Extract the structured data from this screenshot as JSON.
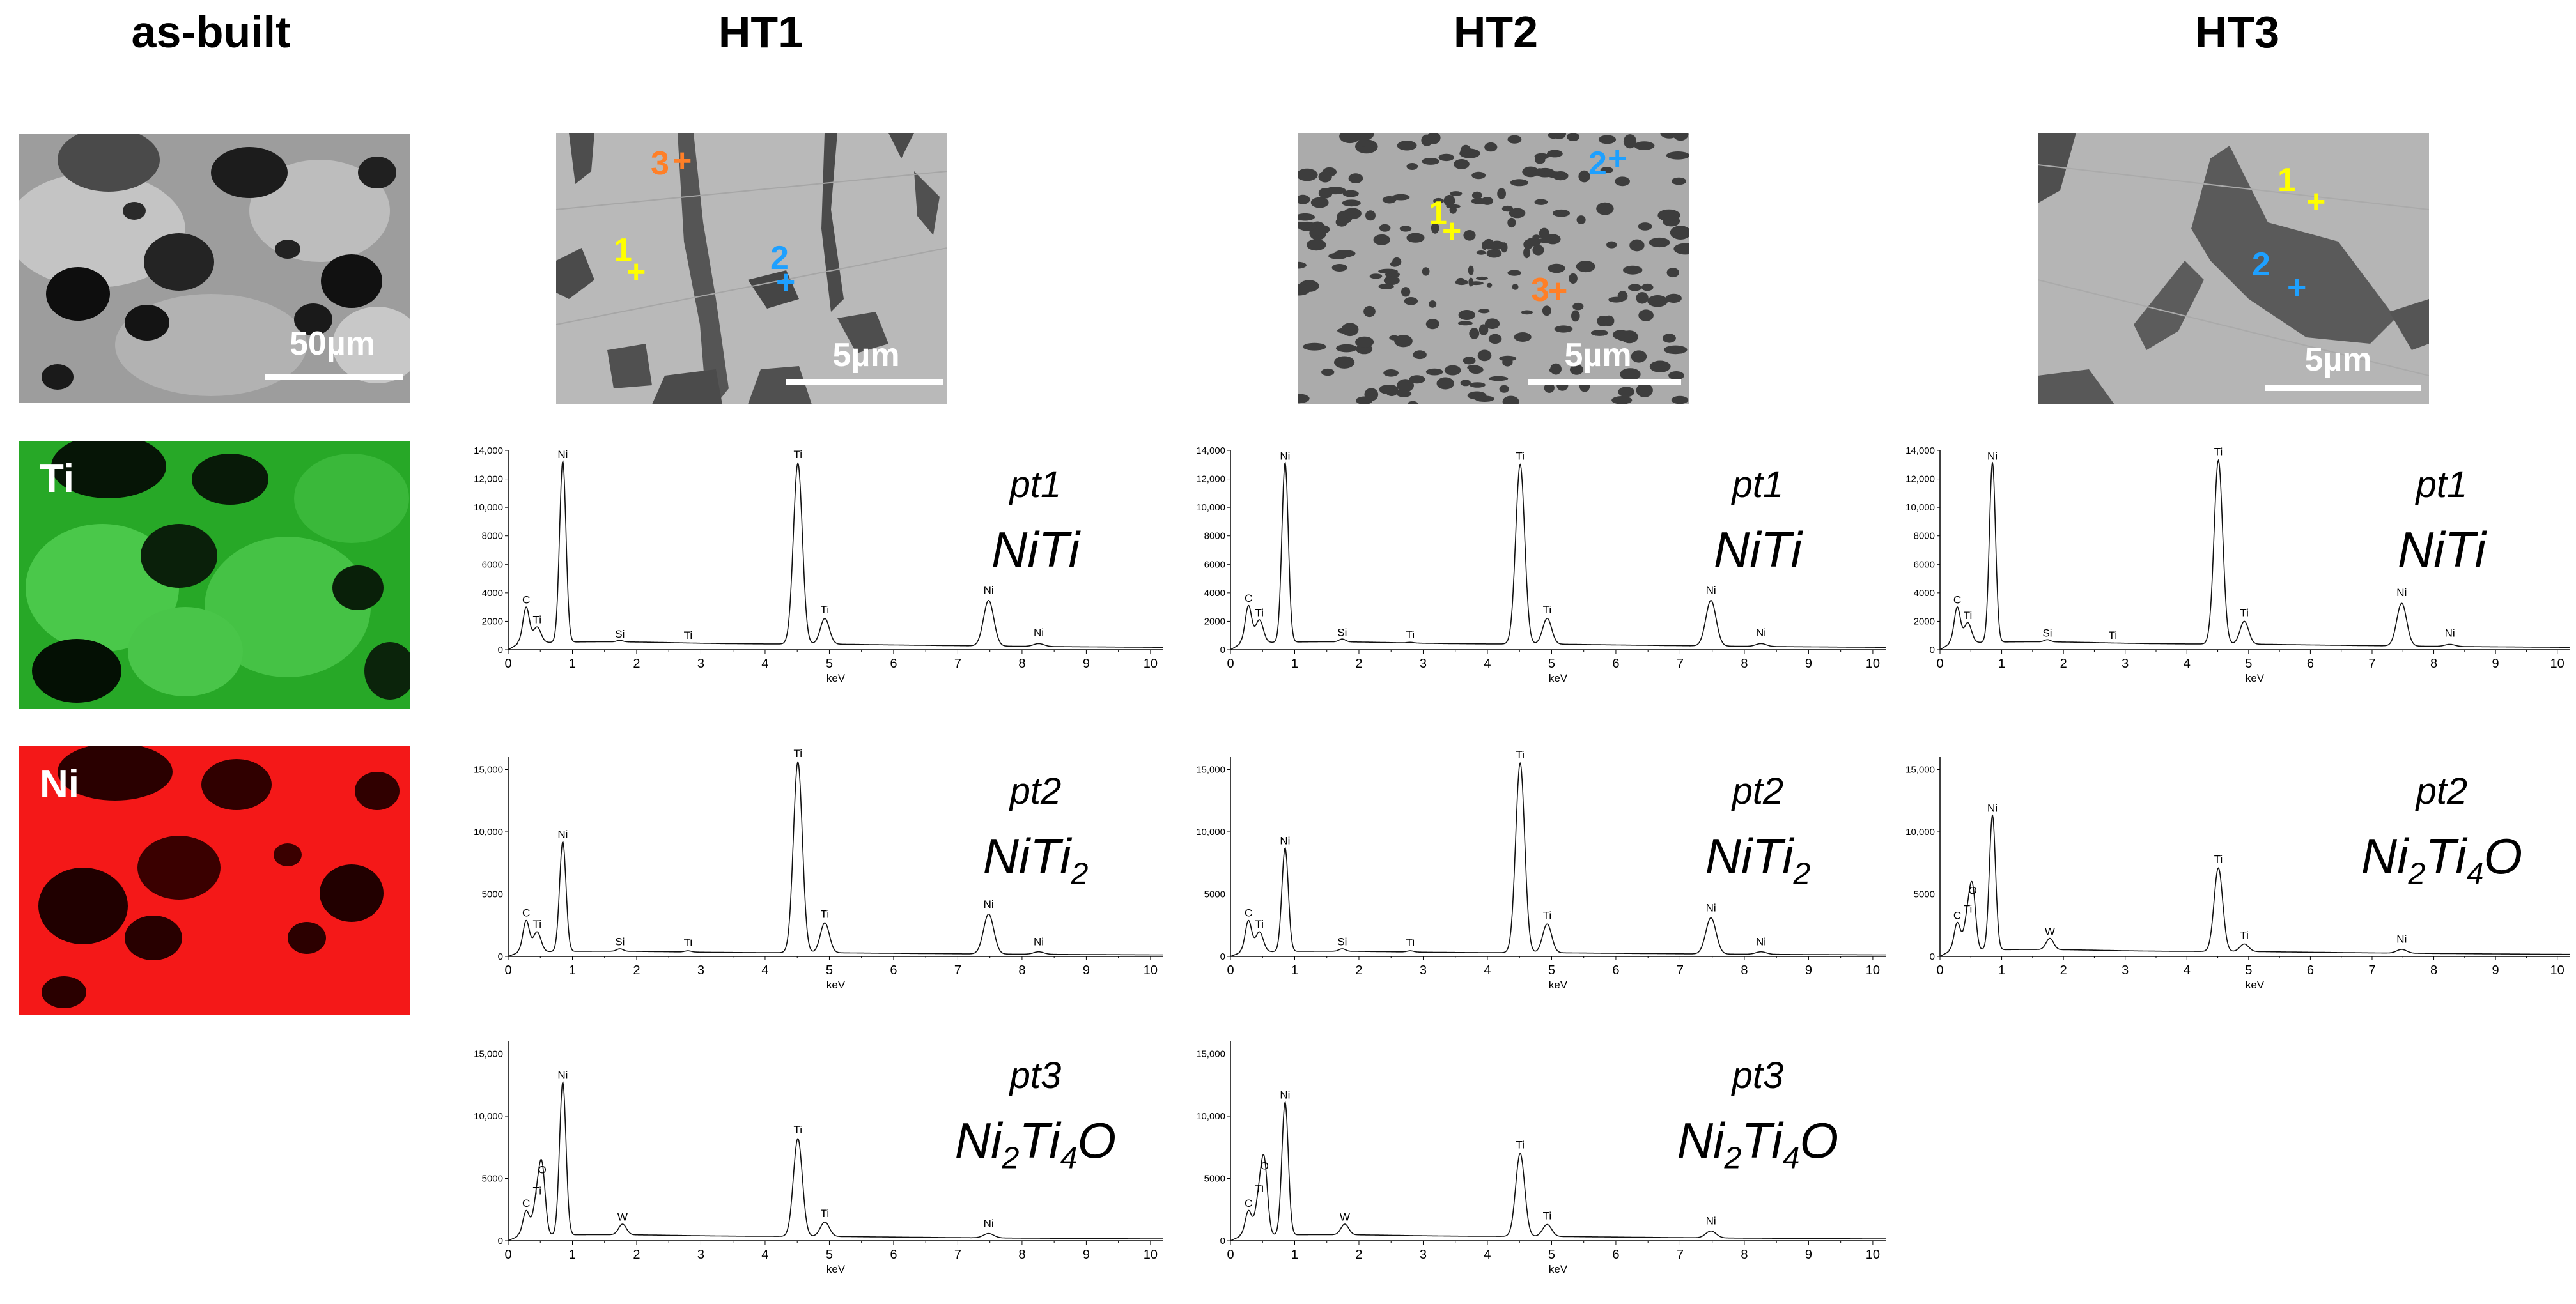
{
  "columns": {
    "as_built": "as-built",
    "ht1": "HT1",
    "ht2": "HT2",
    "ht3": "HT3"
  },
  "maps": {
    "sem_scale": "50µm",
    "ti_label": "Ti",
    "ni_label": "Ni",
    "ti_color": "#2ecc2e",
    "ni_color": "#ff1a1a"
  },
  "micrographs": {
    "ht1": {
      "scale": "5µm",
      "markers": {
        "p1": "1",
        "p2": "2",
        "p3": "3"
      }
    },
    "ht2": {
      "scale": "5µm",
      "markers": {
        "p1": "1",
        "p2": "2",
        "p3": "3"
      }
    },
    "ht3": {
      "scale": "5µm",
      "markers": {
        "p1": "1",
        "p2": "2"
      }
    },
    "marker_colors": {
      "1": "#ffff00",
      "2": "#1ea0ff",
      "3": "#ff7f27"
    }
  },
  "chart_data": [
    {
      "id": "ht1-pt1",
      "type": "line",
      "point_label": "pt1",
      "phase": "NiTi",
      "xlabel": "keV",
      "xlim": [
        0,
        10.2
      ],
      "xticks": [
        0,
        1,
        2,
        3,
        4,
        5,
        6,
        7,
        8,
        9,
        10
      ],
      "ylim": [
        0,
        14000
      ],
      "yticks": [
        0,
        2000,
        4000,
        6000,
        8000,
        10000,
        12000,
        14000
      ],
      "ytick_labels": [
        "0",
        "2000",
        "4000",
        "6000",
        "8000",
        "10,000",
        "12,000",
        "14,000"
      ],
      "background": 400,
      "peaks": [
        {
          "label": "C",
          "x": 0.28,
          "y": 2900,
          "w": 0.05
        },
        {
          "label": "Ti",
          "x": 0.45,
          "y": 1500,
          "w": 0.06
        },
        {
          "label": "Ni",
          "x": 0.85,
          "y": 13100,
          "w": 0.05
        },
        {
          "label": "Si",
          "x": 1.74,
          "y": 500,
          "w": 0.05
        },
        {
          "label": "Ti",
          "x": 2.8,
          "y": 400,
          "w": 0.05
        },
        {
          "label": "Ti",
          "x": 4.51,
          "y": 13100,
          "w": 0.07
        },
        {
          "label": "Ti",
          "x": 4.93,
          "y": 2200,
          "w": 0.07
        },
        {
          "label": "Ni",
          "x": 7.48,
          "y": 3600,
          "w": 0.08
        },
        {
          "label": "Ni",
          "x": 8.26,
          "y": 600,
          "w": 0.08
        }
      ]
    },
    {
      "id": "ht1-pt2",
      "type": "line",
      "point_label": "pt2",
      "phase": "NiTi",
      "phase_sub": "2",
      "xlabel": "keV",
      "xlim": [
        0,
        10.2
      ],
      "xticks": [
        0,
        1,
        2,
        3,
        4,
        5,
        6,
        7,
        8,
        9,
        10
      ],
      "ylim": [
        0,
        16000
      ],
      "yticks": [
        0,
        5000,
        10000,
        15000
      ],
      "ytick_labels": [
        "0",
        "5000",
        "10,000",
        "15,000"
      ],
      "background": 300,
      "peaks": [
        {
          "label": "C",
          "x": 0.28,
          "y": 2800,
          "w": 0.05
        },
        {
          "label": "Ti",
          "x": 0.45,
          "y": 1900,
          "w": 0.06
        },
        {
          "label": "Ni",
          "x": 0.85,
          "y": 9100,
          "w": 0.05
        },
        {
          "label": "Si",
          "x": 1.74,
          "y": 500,
          "w": 0.05
        },
        {
          "label": "Ti",
          "x": 2.8,
          "y": 400,
          "w": 0.05
        },
        {
          "label": "Ti",
          "x": 4.51,
          "y": 15600,
          "w": 0.07
        },
        {
          "label": "Ti",
          "x": 4.93,
          "y": 2700,
          "w": 0.07
        },
        {
          "label": "Ni",
          "x": 7.48,
          "y": 3500,
          "w": 0.08
        },
        {
          "label": "Ni",
          "x": 8.26,
          "y": 500,
          "w": 0.08
        }
      ]
    },
    {
      "id": "ht1-pt3",
      "type": "line",
      "point_label": "pt3",
      "phase": "Ni",
      "phase_sub": "2",
      "phase_mid": "Ti",
      "phase_sub2": "4",
      "phase_end": "O",
      "xlabel": "keV",
      "xlim": [
        0,
        10.2
      ],
      "xticks": [
        0,
        1,
        2,
        3,
        4,
        5,
        6,
        7,
        8,
        9,
        10
      ],
      "ylim": [
        0,
        16000
      ],
      "yticks": [
        0,
        5000,
        10000,
        15000
      ],
      "ytick_labels": [
        "0",
        "5000",
        "10,000",
        "15,000"
      ],
      "background": 350,
      "peaks": [
        {
          "label": "C",
          "x": 0.28,
          "y": 2300,
          "w": 0.05
        },
        {
          "label": "Ti",
          "x": 0.45,
          "y": 3300,
          "w": 0.06
        },
        {
          "label": "O",
          "x": 0.53,
          "y": 5000,
          "w": 0.05
        },
        {
          "label": "Ni",
          "x": 0.85,
          "y": 12600,
          "w": 0.05
        },
        {
          "label": "W",
          "x": 1.78,
          "y": 1200,
          "w": 0.06
        },
        {
          "label": "Ti",
          "x": 4.51,
          "y": 8200,
          "w": 0.07
        },
        {
          "label": "Ti",
          "x": 4.93,
          "y": 1500,
          "w": 0.07
        },
        {
          "label": "Ni",
          "x": 7.48,
          "y": 700,
          "w": 0.08
        }
      ]
    },
    {
      "id": "ht2-pt1",
      "type": "line",
      "point_label": "pt1",
      "phase": "NiTi",
      "xlabel": "keV",
      "xlim": [
        0,
        10.2
      ],
      "xticks": [
        0,
        1,
        2,
        3,
        4,
        5,
        6,
        7,
        8,
        9,
        10
      ],
      "ylim": [
        0,
        14000
      ],
      "yticks": [
        0,
        2000,
        4000,
        6000,
        8000,
        10000,
        12000,
        14000
      ],
      "ytick_labels": [
        "0",
        "2000",
        "4000",
        "6000",
        "8000",
        "10,000",
        "12,000",
        "14,000"
      ],
      "background": 400,
      "peaks": [
        {
          "label": "C",
          "x": 0.28,
          "y": 3000,
          "w": 0.05
        },
        {
          "label": "Ti",
          "x": 0.45,
          "y": 2000,
          "w": 0.06
        },
        {
          "label": "Ni",
          "x": 0.85,
          "y": 13000,
          "w": 0.05
        },
        {
          "label": "Si",
          "x": 1.74,
          "y": 600,
          "w": 0.05
        },
        {
          "label": "Ti",
          "x": 2.8,
          "y": 450,
          "w": 0.05
        },
        {
          "label": "Ti",
          "x": 4.51,
          "y": 13000,
          "w": 0.07
        },
        {
          "label": "Ti",
          "x": 4.93,
          "y": 2200,
          "w": 0.07
        },
        {
          "label": "Ni",
          "x": 7.48,
          "y": 3600,
          "w": 0.08
        },
        {
          "label": "Ni",
          "x": 8.26,
          "y": 600,
          "w": 0.08
        }
      ]
    },
    {
      "id": "ht2-pt2",
      "type": "line",
      "point_label": "pt2",
      "phase": "NiTi",
      "phase_sub": "2",
      "xlabel": "keV",
      "xlim": [
        0,
        10.2
      ],
      "xticks": [
        0,
        1,
        2,
        3,
        4,
        5,
        6,
        7,
        8,
        9,
        10
      ],
      "ylim": [
        0,
        16000
      ],
      "yticks": [
        0,
        5000,
        10000,
        15000
      ],
      "ytick_labels": [
        "0",
        "5000",
        "10,000",
        "15,000"
      ],
      "background": 300,
      "peaks": [
        {
          "label": "C",
          "x": 0.28,
          "y": 2800,
          "w": 0.05
        },
        {
          "label": "Ti",
          "x": 0.45,
          "y": 1900,
          "w": 0.06
        },
        {
          "label": "Ni",
          "x": 0.85,
          "y": 8600,
          "w": 0.05
        },
        {
          "label": "Si",
          "x": 1.74,
          "y": 500,
          "w": 0.05
        },
        {
          "label": "Ti",
          "x": 2.8,
          "y": 400,
          "w": 0.05
        },
        {
          "label": "Ti",
          "x": 4.51,
          "y": 15500,
          "w": 0.07
        },
        {
          "label": "Ti",
          "x": 4.93,
          "y": 2600,
          "w": 0.07
        },
        {
          "label": "Ni",
          "x": 7.48,
          "y": 3200,
          "w": 0.08
        },
        {
          "label": "Ni",
          "x": 8.26,
          "y": 500,
          "w": 0.08
        }
      ]
    },
    {
      "id": "ht2-pt3",
      "type": "line",
      "point_label": "pt3",
      "phase": "Ni",
      "phase_sub": "2",
      "phase_mid": "Ti",
      "phase_sub2": "4",
      "phase_end": "O",
      "xlabel": "keV",
      "xlim": [
        0,
        10.2
      ],
      "xticks": [
        0,
        1,
        2,
        3,
        4,
        5,
        6,
        7,
        8,
        9,
        10
      ],
      "ylim": [
        0,
        16000
      ],
      "yticks": [
        0,
        5000,
        10000,
        15000
      ],
      "ytick_labels": [
        "0",
        "5000",
        "10,000",
        "15,000"
      ],
      "background": 350,
      "peaks": [
        {
          "label": "C",
          "x": 0.28,
          "y": 2300,
          "w": 0.05
        },
        {
          "label": "Ti",
          "x": 0.45,
          "y": 3500,
          "w": 0.06
        },
        {
          "label": "O",
          "x": 0.53,
          "y": 5300,
          "w": 0.05
        },
        {
          "label": "Ni",
          "x": 0.85,
          "y": 11000,
          "w": 0.05
        },
        {
          "label": "W",
          "x": 1.78,
          "y": 1200,
          "w": 0.06
        },
        {
          "label": "Ti",
          "x": 4.51,
          "y": 7000,
          "w": 0.07
        },
        {
          "label": "Ti",
          "x": 4.93,
          "y": 1300,
          "w": 0.07
        },
        {
          "label": "Ni",
          "x": 7.48,
          "y": 900,
          "w": 0.08
        }
      ]
    },
    {
      "id": "ht3-pt1",
      "type": "line",
      "point_label": "pt1",
      "phase": "NiTi",
      "xlabel": "keV",
      "xlim": [
        0,
        10.2
      ],
      "xticks": [
        0,
        1,
        2,
        3,
        4,
        5,
        6,
        7,
        8,
        9,
        10
      ],
      "ylim": [
        0,
        14000
      ],
      "yticks": [
        0,
        2000,
        4000,
        6000,
        8000,
        10000,
        12000,
        14000
      ],
      "ytick_labels": [
        "0",
        "2000",
        "4000",
        "6000",
        "8000",
        "10,000",
        "12,000",
        "14,000"
      ],
      "background": 400,
      "peaks": [
        {
          "label": "C",
          "x": 0.28,
          "y": 2900,
          "w": 0.05
        },
        {
          "label": "Ti",
          "x": 0.45,
          "y": 1800,
          "w": 0.06
        },
        {
          "label": "Ni",
          "x": 0.85,
          "y": 13000,
          "w": 0.05
        },
        {
          "label": "Si",
          "x": 1.74,
          "y": 550,
          "w": 0.05
        },
        {
          "label": "Ti",
          "x": 2.8,
          "y": 400,
          "w": 0.05
        },
        {
          "label": "Ti",
          "x": 4.51,
          "y": 13300,
          "w": 0.07
        },
        {
          "label": "Ti",
          "x": 4.93,
          "y": 2000,
          "w": 0.07
        },
        {
          "label": "Ni",
          "x": 7.48,
          "y": 3400,
          "w": 0.08
        },
        {
          "label": "Ni",
          "x": 8.26,
          "y": 550,
          "w": 0.08
        }
      ]
    },
    {
      "id": "ht3-pt2",
      "type": "line",
      "point_label": "pt2",
      "phase": "Ni",
      "phase_sub": "2",
      "phase_mid": "Ti",
      "phase_sub2": "4",
      "phase_end": "O",
      "xlabel": "keV",
      "xlim": [
        0,
        10.2
      ],
      "xticks": [
        0,
        1,
        2,
        3,
        4,
        5,
        6,
        7,
        8,
        9,
        10
      ],
      "ylim": [
        0,
        16000
      ],
      "yticks": [
        0,
        5000,
        10000,
        15000
      ],
      "ytick_labels": [
        "0",
        "5000",
        "10,000",
        "15,000"
      ],
      "background": 400,
      "peaks": [
        {
          "label": "C",
          "x": 0.28,
          "y": 2600,
          "w": 0.05
        },
        {
          "label": "Ti",
          "x": 0.45,
          "y": 3100,
          "w": 0.06
        },
        {
          "label": "O",
          "x": 0.53,
          "y": 4600,
          "w": 0.05
        },
        {
          "label": "Ni",
          "x": 0.85,
          "y": 11200,
          "w": 0.05
        },
        {
          "label": "W",
          "x": 1.78,
          "y": 1300,
          "w": 0.06
        },
        {
          "label": "Ti",
          "x": 4.51,
          "y": 7100,
          "w": 0.07
        },
        {
          "label": "Ti",
          "x": 4.93,
          "y": 1000,
          "w": 0.07
        },
        {
          "label": "Ni",
          "x": 7.48,
          "y": 700,
          "w": 0.08
        }
      ]
    }
  ]
}
